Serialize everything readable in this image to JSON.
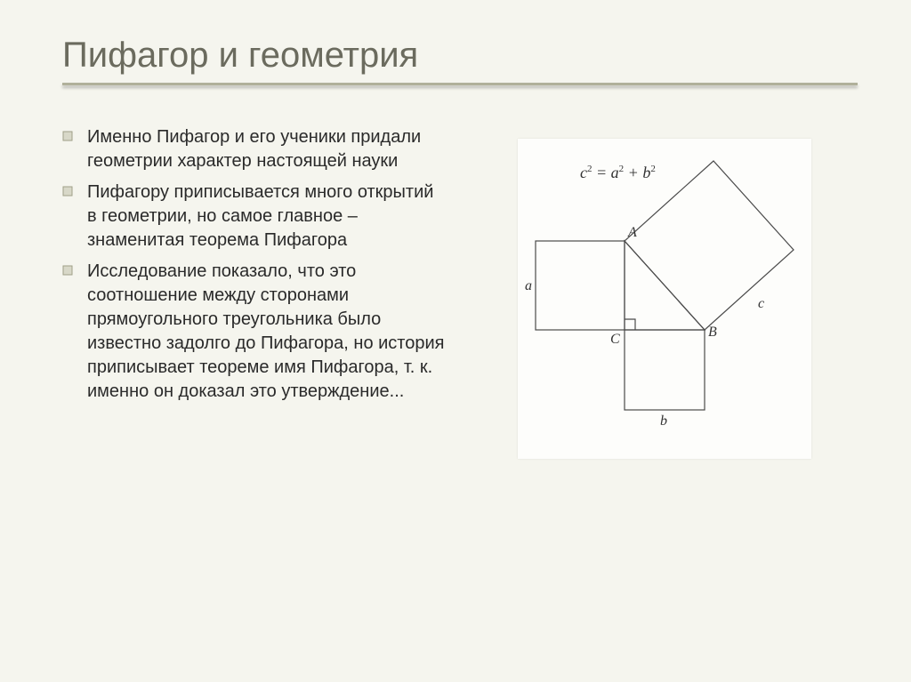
{
  "title": "Пифагор и геометрия",
  "bullets": [
    "Именно Пифагор и его ученики придали геометрии характер настоящей науки",
    "Пифагору приписывается много открытий в геометрии, но самое главное – знаменитая теорема Пифагора",
    "Исследование показало, что это соотношение между сторонами прямоугольного треугольника было известно задолго до Пифагора, но история приписывает теореме имя Пифагора, т. к. именно он доказал это утверждение..."
  ],
  "diagram": {
    "formula_html": "<i>c</i><sup>2</sup> = <i>a</i><sup>2</sup> + <i>b</i><sup>2</sup>",
    "labels": {
      "A": "A",
      "B": "B",
      "C": "C",
      "a": "a",
      "b": "b",
      "c": "c"
    },
    "stroke_color": "#4a4a4a",
    "stroke_width": 1.2,
    "label_font": "Times New Roman",
    "label_size_pt": 14
  },
  "colors": {
    "slide_bg": "#f5f5ee",
    "title_color": "#6b6b5e",
    "underline_color": "#b0b09a",
    "text_color": "#2a2a2a",
    "bullet_fill": "#d8d8c8",
    "bullet_stroke": "#a0a088"
  },
  "typography": {
    "title_size_pt": 40,
    "body_size_pt": 20,
    "font_family": "Arial"
  }
}
